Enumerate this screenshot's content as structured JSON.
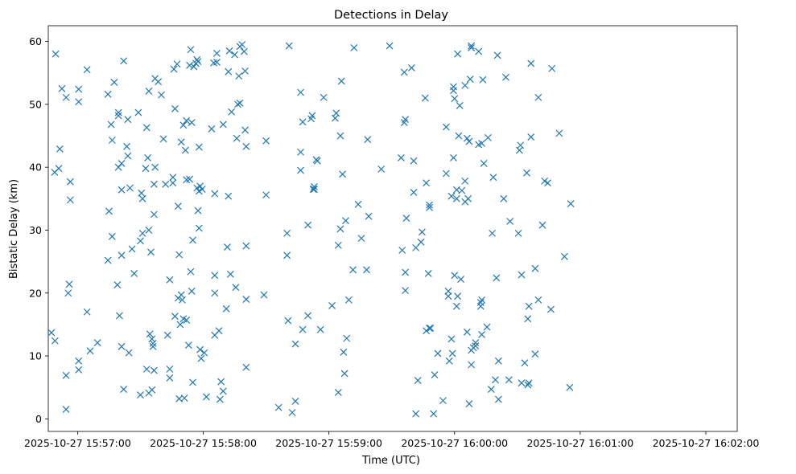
{
  "chart_data": {
    "type": "scatter",
    "title": "Detections in Delay",
    "xlabel": "Time (UTC)",
    "ylabel": "Bistatic Delay (km)",
    "marker": "x",
    "color": "#1f77b4",
    "grid": false,
    "xlim_seconds": [
      -14,
      315
    ],
    "ylim": [
      -2.0,
      62.5
    ],
    "x_ticks": [
      {
        "t": 0,
        "label": "2025-10-27 15:57:00"
      },
      {
        "t": 60,
        "label": "2025-10-27 15:58:00"
      },
      {
        "t": 120,
        "label": "2025-10-27 15:59:00"
      },
      {
        "t": 180,
        "label": "2025-10-27 16:00:00"
      },
      {
        "t": 240,
        "label": "2025-10-27 16:01:00"
      },
      {
        "t": 300,
        "label": "2025-10-27 16:02:00"
      }
    ],
    "y_ticks": [
      0,
      10,
      20,
      30,
      40,
      50,
      60
    ],
    "x_unit_note": "point x values are seconds after 2025-10-27 15:57:00 UTC",
    "points": [
      [
        -12.5,
        13.7
      ],
      [
        -10.8,
        12.4
      ],
      [
        -10.5,
        58.0
      ],
      [
        -11.0,
        39.2
      ],
      [
        -9.0,
        39.8
      ],
      [
        -8.5,
        42.9
      ],
      [
        -7.5,
        52.5
      ],
      [
        -5.5,
        51.1
      ],
      [
        -5.5,
        6.9
      ],
      [
        -5.5,
        1.5
      ],
      [
        -4.0,
        21.4
      ],
      [
        -4.5,
        20.0
      ],
      [
        -3.5,
        37.7
      ],
      [
        -3.5,
        34.8
      ],
      [
        0.5,
        52.4
      ],
      [
        0.5,
        50.4
      ],
      [
        0.5,
        7.8
      ],
      [
        0.5,
        9.2
      ],
      [
        4.5,
        55.5
      ],
      [
        4.5,
        17.0
      ],
      [
        6.0,
        10.8
      ],
      [
        9.5,
        12.1
      ],
      [
        14.5,
        51.6
      ],
      [
        15.0,
        33.0
      ],
      [
        16.0,
        46.8
      ],
      [
        16.5,
        44.3
      ],
      [
        16.5,
        29.0
      ],
      [
        17.5,
        53.5
      ],
      [
        14.5,
        25.2
      ],
      [
        19.0,
        21.3
      ],
      [
        19.5,
        48.7
      ],
      [
        19.5,
        48.2
      ],
      [
        20.0,
        16.4
      ],
      [
        19.5,
        40.0
      ],
      [
        21.0,
        36.4
      ],
      [
        21.0,
        40.6
      ],
      [
        21.0,
        11.5
      ],
      [
        21.0,
        26.0
      ],
      [
        22.0,
        56.9
      ],
      [
        22.0,
        4.7
      ],
      [
        24.0,
        47.6
      ],
      [
        23.5,
        43.3
      ],
      [
        24.0,
        41.8
      ],
      [
        24.5,
        10.5
      ],
      [
        25.0,
        36.7
      ],
      [
        26.0,
        27.0
      ],
      [
        27.0,
        23.1
      ],
      [
        29.0,
        48.7
      ],
      [
        30.0,
        28.3
      ],
      [
        30.0,
        3.8
      ],
      [
        30.5,
        35.9
      ],
      [
        31.0,
        29.5
      ],
      [
        31.0,
        35.0
      ],
      [
        32.5,
        39.8
      ],
      [
        33.0,
        46.3
      ],
      [
        34.0,
        52.1
      ],
      [
        33.5,
        41.5
      ],
      [
        34.0,
        30.0
      ],
      [
        33.0,
        7.9
      ],
      [
        34.0,
        4.1
      ],
      [
        34.5,
        13.5
      ],
      [
        35.0,
        26.5
      ],
      [
        35.5,
        12.7
      ],
      [
        35.5,
        4.6
      ],
      [
        36.0,
        11.5
      ],
      [
        36.0,
        12.0
      ],
      [
        36.5,
        7.7
      ],
      [
        36.5,
        32.5
      ],
      [
        36.5,
        37.3
      ],
      [
        37.0,
        54.1
      ],
      [
        37.0,
        40.0
      ],
      [
        38.5,
        53.6
      ],
      [
        40.0,
        51.5
      ],
      [
        41.0,
        44.5
      ],
      [
        42.0,
        37.3
      ],
      [
        43.0,
        13.3
      ],
      [
        44.0,
        22.1
      ],
      [
        44.0,
        7.9
      ],
      [
        44.0,
        6.5
      ],
      [
        45.5,
        38.4
      ],
      [
        45.5,
        37.5
      ],
      [
        46.0,
        55.6
      ],
      [
        46.5,
        49.3
      ],
      [
        46.5,
        16.3
      ],
      [
        47.5,
        56.4
      ],
      [
        48.0,
        33.8
      ],
      [
        48.5,
        26.1
      ],
      [
        48.0,
        19.2
      ],
      [
        48.5,
        3.2
      ],
      [
        49.0,
        15.0
      ],
      [
        49.5,
        19.7
      ],
      [
        49.5,
        44.0
      ],
      [
        50.0,
        18.9
      ],
      [
        50.5,
        46.7
      ],
      [
        50.5,
        15.9
      ],
      [
        51.0,
        3.3
      ],
      [
        51.5,
        42.7
      ],
      [
        52.0,
        38.0
      ],
      [
        52.0,
        47.4
      ],
      [
        52.0,
        15.7
      ],
      [
        53.0,
        11.7
      ],
      [
        53.5,
        38.1
      ],
      [
        53.5,
        56.2
      ],
      [
        54.0,
        58.7
      ],
      [
        54.0,
        23.4
      ],
      [
        54.5,
        20.3
      ],
      [
        54.5,
        47.1
      ],
      [
        55.0,
        5.8
      ],
      [
        55.0,
        28.4
      ],
      [
        55.5,
        56.0
      ],
      [
        57.0,
        57.1
      ],
      [
        56.5,
        56.5
      ],
      [
        57.5,
        56.8
      ],
      [
        57.0,
        36.7
      ],
      [
        57.5,
        33.1
      ],
      [
        58.0,
        30.3
      ],
      [
        58.0,
        43.2
      ],
      [
        58.0,
        36.2
      ],
      [
        58.5,
        37.0
      ],
      [
        58.5,
        11.0
      ],
      [
        59.0,
        9.6
      ],
      [
        59.5,
        36.5
      ],
      [
        60.5,
        10.5
      ],
      [
        61.5,
        3.5
      ],
      [
        64.0,
        46.1
      ],
      [
        65.0,
        56.6
      ],
      [
        65.5,
        35.8
      ],
      [
        65.5,
        22.8
      ],
      [
        65.5,
        13.3
      ],
      [
        65.5,
        20.0
      ],
      [
        66.5,
        56.7
      ],
      [
        66.5,
        58.1
      ],
      [
        67.5,
        14.0
      ],
      [
        68.0,
        3.1
      ],
      [
        68.5,
        5.9
      ],
      [
        69.5,
        4.4
      ],
      [
        69.5,
        46.8
      ],
      [
        71.0,
        17.5
      ],
      [
        71.5,
        27.3
      ],
      [
        72.0,
        35.4
      ],
      [
        72.0,
        55.2
      ],
      [
        72.5,
        58.5
      ],
      [
        73.0,
        23.0
      ],
      [
        73.5,
        48.8
      ],
      [
        75.0,
        57.9
      ],
      [
        75.5,
        20.9
      ],
      [
        76.0,
        44.6
      ],
      [
        76.5,
        50.0
      ],
      [
        77.0,
        54.5
      ],
      [
        77.5,
        50.2
      ],
      [
        77.5,
        59.2
      ],
      [
        78.5,
        59.5
      ],
      [
        79.5,
        58.4
      ],
      [
        80.0,
        55.3
      ],
      [
        80.0,
        45.9
      ],
      [
        80.5,
        43.3
      ],
      [
        80.5,
        27.5
      ],
      [
        80.5,
        19.0
      ],
      [
        80.5,
        8.2
      ],
      [
        89.0,
        19.7
      ],
      [
        90.0,
        35.6
      ],
      [
        90.0,
        44.2
      ],
      [
        96.0,
        1.8
      ],
      [
        100.0,
        29.5
      ],
      [
        100.0,
        26.0
      ],
      [
        100.5,
        15.6
      ],
      [
        101.0,
        59.3
      ],
      [
        102.5,
        1.0
      ],
      [
        104.0,
        11.9
      ],
      [
        104.0,
        2.8
      ],
      [
        106.5,
        42.4
      ],
      [
        106.5,
        39.5
      ],
      [
        106.5,
        51.9
      ],
      [
        107.5,
        47.2
      ],
      [
        107.5,
        14.2
      ],
      [
        110.0,
        30.8
      ],
      [
        110.0,
        16.4
      ],
      [
        111.5,
        47.7
      ],
      [
        112.0,
        48.2
      ],
      [
        112.5,
        36.5
      ],
      [
        113.0,
        36.5
      ],
      [
        113.0,
        36.9
      ],
      [
        114.0,
        41.2
      ],
      [
        114.5,
        41.0
      ],
      [
        116.0,
        14.2
      ],
      [
        117.5,
        51.1
      ],
      [
        121.5,
        18.0
      ],
      [
        123.0,
        47.8
      ],
      [
        123.5,
        48.6
      ],
      [
        124.5,
        27.6
      ],
      [
        124.5,
        4.2
      ],
      [
        125.5,
        45.0
      ],
      [
        125.5,
        30.2
      ],
      [
        126.0,
        53.7
      ],
      [
        126.5,
        38.9
      ],
      [
        127.0,
        10.6
      ],
      [
        127.5,
        7.2
      ],
      [
        128.0,
        31.5
      ],
      [
        128.5,
        12.8
      ],
      [
        129.5,
        18.9
      ],
      [
        131.5,
        23.7
      ],
      [
        132.0,
        59.0
      ],
      [
        134.0,
        34.1
      ],
      [
        135.5,
        28.7
      ],
      [
        138.0,
        23.7
      ],
      [
        138.5,
        44.4
      ],
      [
        139.0,
        32.2
      ],
      [
        145.0,
        39.7
      ],
      [
        149.0,
        59.3
      ],
      [
        154.5,
        41.5
      ],
      [
        155.0,
        26.8
      ],
      [
        156.0,
        55.1
      ],
      [
        156.0,
        47.1
      ],
      [
        156.5,
        47.6
      ],
      [
        156.5,
        23.3
      ],
      [
        156.5,
        20.4
      ],
      [
        157.0,
        31.9
      ],
      [
        159.5,
        55.8
      ],
      [
        160.5,
        41.0
      ],
      [
        160.5,
        36.0
      ],
      [
        161.5,
        27.2
      ],
      [
        161.5,
        0.8
      ],
      [
        162.5,
        6.1
      ],
      [
        164.0,
        28.1
      ],
      [
        164.5,
        29.7
      ],
      [
        166.0,
        51.0
      ],
      [
        166.5,
        37.5
      ],
      [
        166.5,
        14.0
      ],
      [
        167.5,
        23.1
      ],
      [
        168.0,
        14.4
      ],
      [
        168.0,
        34.0
      ],
      [
        168.0,
        33.6
      ],
      [
        168.5,
        14.4
      ],
      [
        170.0,
        0.8
      ],
      [
        170.5,
        7.0
      ],
      [
        172.0,
        10.4
      ],
      [
        174.5,
        2.9
      ],
      [
        176.0,
        46.4
      ],
      [
        176.0,
        39.0
      ],
      [
        177.0,
        20.3
      ],
      [
        177.0,
        19.5
      ],
      [
        177.5,
        9.2
      ],
      [
        178.5,
        12.7
      ],
      [
        178.5,
        35.4
      ],
      [
        179.0,
        10.4
      ],
      [
        179.5,
        41.5
      ],
      [
        179.5,
        52.8
      ],
      [
        179.5,
        52.2
      ],
      [
        180.0,
        50.9
      ],
      [
        180.0,
        22.8
      ],
      [
        181.0,
        36.4
      ],
      [
        181.0,
        35.0
      ],
      [
        181.0,
        17.9
      ],
      [
        181.5,
        19.5
      ],
      [
        181.5,
        58.0
      ],
      [
        182.5,
        49.8
      ],
      [
        182.0,
        45.0
      ],
      [
        183.0,
        22.2
      ],
      [
        183.5,
        36.3
      ],
      [
        185.0,
        34.5
      ],
      [
        185.0,
        37.8
      ],
      [
        185.0,
        53.0
      ],
      [
        186.0,
        44.6
      ],
      [
        186.0,
        13.8
      ],
      [
        187.0,
        44.1
      ],
      [
        186.5,
        35.0
      ],
      [
        187.0,
        2.4
      ],
      [
        188.0,
        59.3
      ],
      [
        187.5,
        54.0
      ],
      [
        188.0,
        59.0
      ],
      [
        188.0,
        8.6
      ],
      [
        188.0,
        10.9
      ],
      [
        189.0,
        11.3
      ],
      [
        190.0,
        12.1
      ],
      [
        190.0,
        11.6
      ],
      [
        191.5,
        43.6
      ],
      [
        191.5,
        58.4
      ],
      [
        192.5,
        17.9
      ],
      [
        192.5,
        18.5
      ],
      [
        193.0,
        18.9
      ],
      [
        193.0,
        13.4
      ],
      [
        193.0,
        43.8
      ],
      [
        193.5,
        53.9
      ],
      [
        194.0,
        40.6
      ],
      [
        195.5,
        14.6
      ],
      [
        196.0,
        44.7
      ],
      [
        197.5,
        4.7
      ],
      [
        198.5,
        38.4
      ],
      [
        198.0,
        29.5
      ],
      [
        199.5,
        6.2
      ],
      [
        200.0,
        22.4
      ],
      [
        200.5,
        57.8
      ],
      [
        201.0,
        9.2
      ],
      [
        201.0,
        3.1
      ],
      [
        203.5,
        35.0
      ],
      [
        204.5,
        54.3
      ],
      [
        206.0,
        6.2
      ],
      [
        206.5,
        31.4
      ],
      [
        210.5,
        29.5
      ],
      [
        211.0,
        42.7
      ],
      [
        211.5,
        43.5
      ],
      [
        212.0,
        22.9
      ],
      [
        212.0,
        5.7
      ],
      [
        213.5,
        8.9
      ],
      [
        214.5,
        39.1
      ],
      [
        215.0,
        15.9
      ],
      [
        215.0,
        5.4
      ],
      [
        215.5,
        5.7
      ],
      [
        215.5,
        17.9
      ],
      [
        216.5,
        44.8
      ],
      [
        216.5,
        56.5
      ],
      [
        218.5,
        23.9
      ],
      [
        218.5,
        10.3
      ],
      [
        220.0,
        51.1
      ],
      [
        220.0,
        18.9
      ],
      [
        222.0,
        30.8
      ],
      [
        223.0,
        37.8
      ],
      [
        224.5,
        37.5
      ],
      [
        226.0,
        17.4
      ],
      [
        226.5,
        55.7
      ],
      [
        230.0,
        45.4
      ],
      [
        232.5,
        25.8
      ],
      [
        235.5,
        34.2
      ],
      [
        235.0,
        5.0
      ]
    ]
  }
}
